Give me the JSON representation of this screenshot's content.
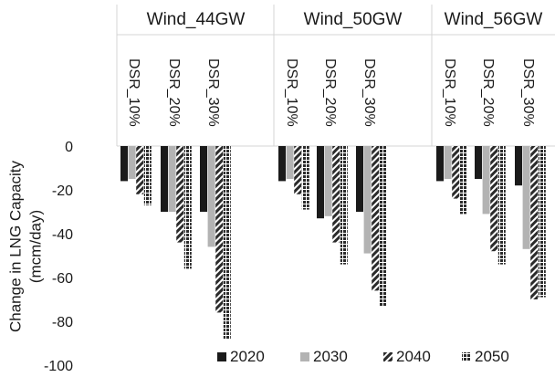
{
  "chart_data": {
    "type": "bar",
    "ylabel": "Change in LNG Capacity (mcm/day)",
    "ylabel_lines": [
      "Change in LNG Capacity",
      "(mcm/day)"
    ],
    "ylim": [
      -100,
      0
    ],
    "yticks": [
      0,
      -20,
      -40,
      -60,
      -80,
      -100
    ],
    "grid": false,
    "legend_position": "bottom-right",
    "groups": [
      {
        "label": "Wind_44GW",
        "subgroups": [
          "DSR_10%",
          "DSR_20%",
          "DSR_30%"
        ]
      },
      {
        "label": "Wind_50GW",
        "subgroups": [
          "DSR_10%",
          "DSR_20%",
          "DSR_30%"
        ]
      },
      {
        "label": "Wind_56GW",
        "subgroups": [
          "DSR_10%",
          "DSR_20%",
          "DSR_30%"
        ]
      }
    ],
    "categories": [
      "Wind_44GW DSR_10%",
      "Wind_44GW DSR_20%",
      "Wind_44GW DSR_30%",
      "Wind_50GW DSR_10%",
      "Wind_50GW DSR_20%",
      "Wind_50GW DSR_30%",
      "Wind_56GW DSR_10%",
      "Wind_56GW DSR_20%",
      "Wind_56GW DSR_30%"
    ],
    "series": [
      {
        "name": "2020",
        "color": "#1a1a1a",
        "pattern": "solid",
        "values": [
          -16,
          -30,
          -30,
          -16,
          -33,
          -30,
          -16,
          -15,
          -18
        ]
      },
      {
        "name": "2030",
        "color": "#b3b3b3",
        "pattern": "solid",
        "values": [
          -15,
          -30,
          -46,
          -15,
          -32,
          -49,
          -15,
          -31,
          -47
        ]
      },
      {
        "name": "2040",
        "color": "#2b2b2b",
        "pattern": "diagonal",
        "values": [
          -22,
          -44,
          -76,
          -22,
          -44,
          -66,
          -24,
          -48,
          -70
        ]
      },
      {
        "name": "2050",
        "color": "#2b2b2b",
        "pattern": "grid",
        "values": [
          -27,
          -56,
          -88,
          -29,
          -54,
          -73,
          -31,
          -54,
          -69
        ]
      }
    ]
  }
}
